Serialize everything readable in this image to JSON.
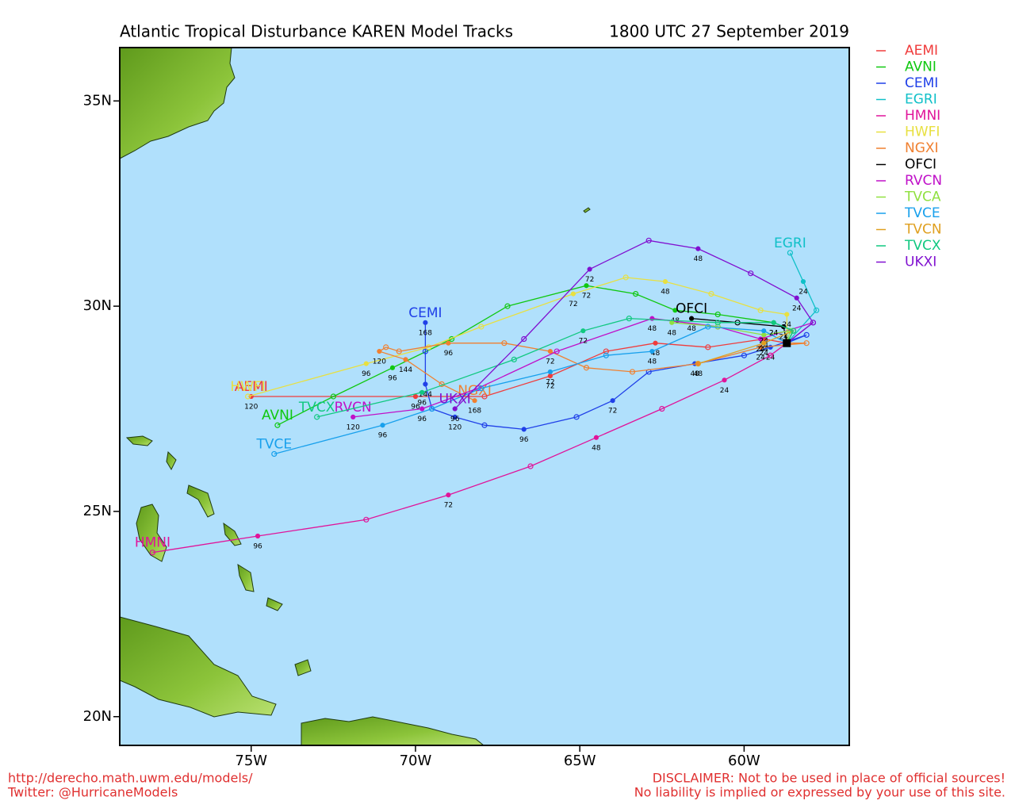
{
  "chart_data": {
    "type": "track-map",
    "title": "Atlantic Tropical Disturbance KAREN Model Tracks",
    "subtitle": "1800 UTC 27 September 2019",
    "xlim": [
      -79,
      -56.8
    ],
    "ylim": [
      19.3,
      36.3
    ],
    "xticks": [
      {
        "value": -75,
        "label": "75W"
      },
      {
        "value": -70,
        "label": "70W"
      },
      {
        "value": -65,
        "label": "65W"
      },
      {
        "value": -60,
        "label": "60W"
      }
    ],
    "yticks": [
      {
        "value": 20,
        "label": "20N"
      },
      {
        "value": 25,
        "label": "25N"
      },
      {
        "value": 30,
        "label": "30N"
      },
      {
        "value": 35,
        "label": "35N"
      }
    ],
    "current_position": {
      "lon": -58.7,
      "lat": 29.1
    },
    "series": [
      {
        "name": "AEMI",
        "color": "#f03c3c",
        "end_label": true,
        "lon": [
          -58.7,
          -59.4,
          -61.1,
          -62.7,
          -64.2,
          -65.9,
          -67.9,
          -70.0,
          -75.0
        ],
        "lat": [
          29.1,
          29.2,
          29.0,
          29.1,
          28.9,
          28.3,
          27.8,
          27.8,
          27.8
        ],
        "hours": [
          null,
          24,
          null,
          48,
          null,
          72,
          null,
          96,
          120
        ]
      },
      {
        "name": "AVNI",
        "color": "#10c810",
        "end_label": true,
        "lon": [
          -58.7,
          -58.5,
          -59.1,
          -60.8,
          -62.1,
          -63.3,
          -64.8,
          -67.2,
          -68.9,
          -70.7,
          -72.5,
          -74.2
        ],
        "lat": [
          29.1,
          29.4,
          29.6,
          29.8,
          29.9,
          30.3,
          30.5,
          30.0,
          29.2,
          28.5,
          27.8,
          27.1
        ],
        "hours": [
          null,
          null,
          24,
          null,
          48,
          null,
          72,
          null,
          null,
          96,
          null,
          null
        ]
      },
      {
        "name": "CEMI",
        "color": "#2040e8",
        "end_label": true,
        "lon": [
          -58.7,
          -58.1,
          -59.2,
          -60.0,
          -61.5,
          -62.9,
          -64.0,
          -65.1,
          -66.7,
          -67.9,
          -68.8,
          -69.5,
          -69.7,
          -69.7,
          -69.7
        ],
        "lat": [
          29.1,
          29.3,
          29.0,
          28.8,
          28.6,
          28.4,
          27.7,
          27.3,
          27.0,
          27.1,
          27.3,
          27.5,
          28.1,
          28.9,
          29.6
        ],
        "hours": [
          null,
          null,
          24,
          null,
          48,
          null,
          72,
          null,
          96,
          null,
          120,
          null,
          144,
          null,
          168
        ]
      },
      {
        "name": "EGRI",
        "color": "#10c0c8",
        "end_label": true,
        "lon": [
          -58.7,
          -57.8,
          -58.2,
          -58.6
        ],
        "lat": [
          29.1,
          29.9,
          30.6,
          31.3
        ],
        "hours": [
          null,
          null,
          24,
          null
        ]
      },
      {
        "name": "HMNI",
        "color": "#e0149a",
        "end_label": true,
        "lon": [
          -58.7,
          -59.2,
          -60.6,
          -62.5,
          -64.5,
          -66.5,
          -69.0,
          -71.5,
          -74.8,
          -78.0
        ],
        "lat": [
          29.1,
          28.8,
          28.2,
          27.5,
          26.8,
          26.1,
          25.4,
          24.8,
          24.4,
          24.0
        ],
        "hours": [
          null,
          null,
          24,
          null,
          48,
          null,
          72,
          null,
          96,
          null
        ]
      },
      {
        "name": "HWFI",
        "color": "#e8e040",
        "end_label": true,
        "lon": [
          -58.7,
          -58.7,
          -59.5,
          -61.0,
          -62.4,
          -63.6,
          -65.2,
          -68.0,
          -69.6,
          -71.5,
          -75.1
        ],
        "lat": [
          29.1,
          29.8,
          29.9,
          30.3,
          30.6,
          30.7,
          30.3,
          29.5,
          29.0,
          28.6,
          27.8
        ],
        "hours": [
          null,
          24,
          null,
          null,
          48,
          null,
          72,
          null,
          null,
          96,
          null
        ]
      },
      {
        "name": "NGXI",
        "color": "#f08030",
        "end_label": true,
        "lon": [
          -58.7,
          -58.1,
          -59.5,
          -61.4,
          -63.4,
          -64.8,
          -65.9,
          -67.3,
          -69.0,
          -70.5,
          -70.9,
          -71.1,
          -70.3,
          -69.2,
          -68.2
        ],
        "lat": [
          29.1,
          29.1,
          29.0,
          28.6,
          28.4,
          28.5,
          28.9,
          29.1,
          29.1,
          28.9,
          29.0,
          28.9,
          28.7,
          28.1,
          27.7
        ],
        "hours": [
          null,
          null,
          24,
          48,
          null,
          null,
          72,
          null,
          96,
          null,
          null,
          120,
          144,
          null,
          168
        ]
      },
      {
        "name": "OFCI",
        "color": "#000000",
        "end_label": true,
        "lon": [
          -58.7,
          -58.8,
          -60.2,
          -61.6
        ],
        "lat": [
          29.1,
          29.5,
          29.6,
          29.7
        ],
        "hours": [
          null,
          24,
          null,
          48
        ]
      },
      {
        "name": "RVCN",
        "color": "#c010c8",
        "end_label": true,
        "lon": [
          -58.7,
          -57.9,
          -59.5,
          -60.8,
          -62.8,
          -65.7,
          -68.1,
          -69.8,
          -71.9
        ],
        "lat": [
          29.1,
          29.6,
          29.2,
          29.5,
          29.7,
          28.9,
          28.0,
          27.5,
          27.3
        ],
        "hours": [
          null,
          null,
          24,
          null,
          48,
          null,
          null,
          96,
          120
        ]
      },
      {
        "name": "TVCA",
        "color": "#90e040",
        "end_label": false,
        "lon": [
          -58.7,
          -58.6,
          -59.4,
          -60.8,
          -62.2
        ],
        "lat": [
          29.1,
          29.4,
          29.3,
          29.5,
          29.6
        ],
        "hours": [
          null,
          null,
          24,
          null,
          48
        ]
      },
      {
        "name": "TVCE",
        "color": "#18a0ec",
        "end_label": true,
        "lon": [
          -58.7,
          -59.4,
          -61.1,
          -62.8,
          -64.2,
          -65.9,
          -68.0,
          -69.5,
          -71.0,
          -74.3
        ],
        "lat": [
          29.1,
          29.4,
          29.5,
          28.9,
          28.8,
          28.4,
          28.0,
          27.5,
          27.1,
          26.4
        ],
        "hours": [
          null,
          24,
          null,
          48,
          null,
          72,
          null,
          null,
          96,
          null
        ]
      },
      {
        "name": "TVCN",
        "color": "#e0a020",
        "end_label": false,
        "lon": [
          -58.7,
          -58.5,
          -59.4,
          -61.4
        ],
        "lat": [
          29.1,
          29.4,
          29.1,
          28.6
        ],
        "hours": [
          null,
          null,
          24,
          null
        ]
      },
      {
        "name": "TVCX",
        "color": "#10c880",
        "end_label": true,
        "lon": [
          -58.7,
          -58.5,
          -59.1,
          -60.8,
          -63.5,
          -64.9,
          -67.0,
          -69.8,
          -73.0
        ],
        "lat": [
          29.1,
          29.4,
          29.6,
          29.6,
          29.7,
          29.4,
          28.7,
          27.9,
          27.3
        ],
        "hours": [
          null,
          null,
          24,
          null,
          null,
          72,
          null,
          96,
          null
        ]
      },
      {
        "name": "UKXI",
        "color": "#8010d0",
        "end_label": true,
        "lon": [
          -58.7,
          -57.9,
          -58.4,
          -59.8,
          -61.4,
          -62.9,
          -64.7,
          -66.7,
          -68.8
        ],
        "lat": [
          29.1,
          29.6,
          30.2,
          30.8,
          31.4,
          31.6,
          30.9,
          29.2,
          27.5
        ],
        "hours": [
          null,
          null,
          24,
          null,
          48,
          null,
          72,
          null,
          96
        ]
      }
    ]
  },
  "footer": {
    "left": [
      "http://derecho.math.uwm.edu/models/",
      "Twitter: @HurricaneModels"
    ],
    "right": [
      "DISCLAIMER: Not to be used in place of official sources!",
      "No liability is implied or expressed by your use of this site."
    ]
  }
}
